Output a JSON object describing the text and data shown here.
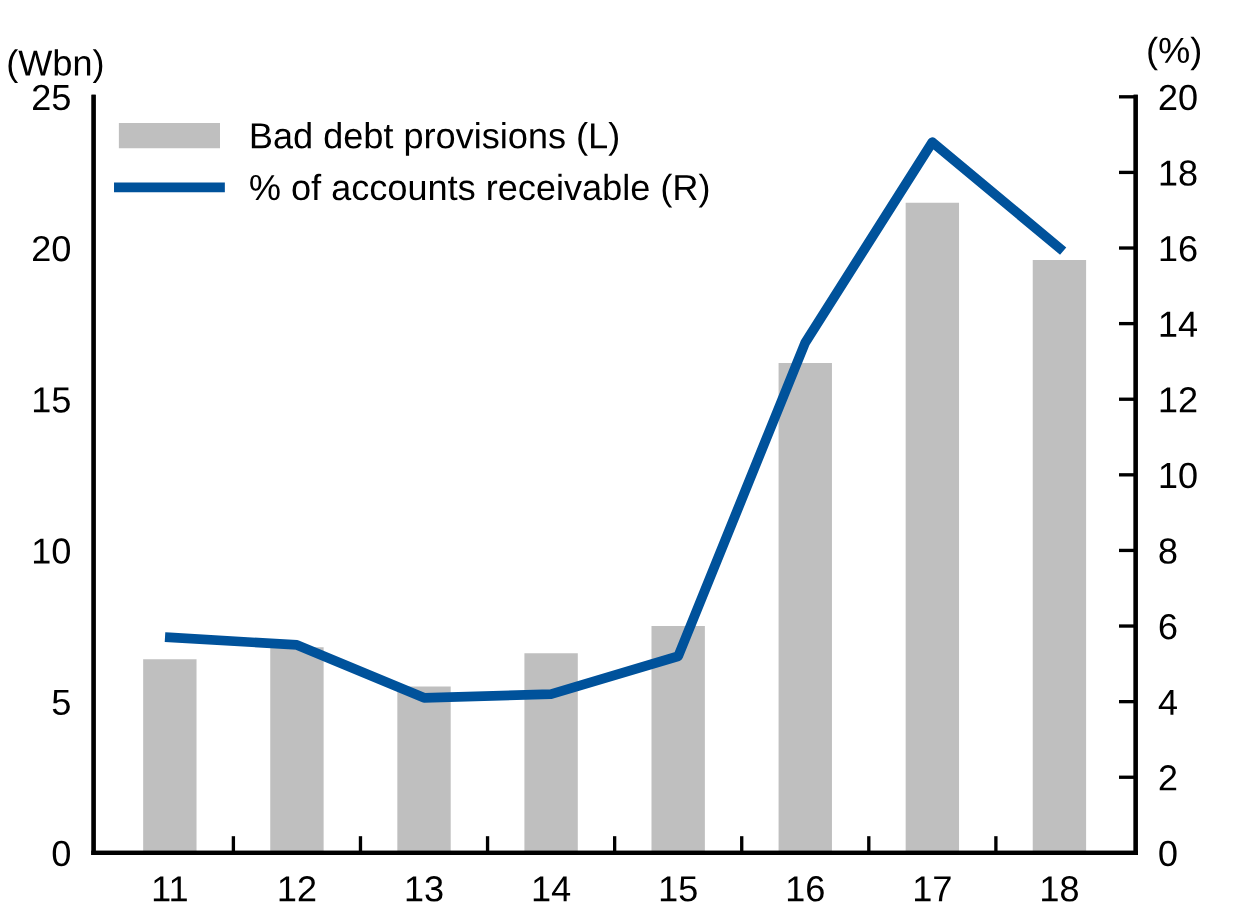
{
  "chart_data": {
    "type": "bar",
    "ylabel": "(Wbn)",
    "y2label": "(%)",
    "categories": [
      "11",
      "12",
      "13",
      "14",
      "15",
      "16",
      "17",
      "18"
    ],
    "series": [
      {
        "name": "Bad debt provisions (L)",
        "color": "#bfbfbf",
        "values": [
          6.4,
          6.8,
          5.5,
          6.6,
          7.5,
          16.2,
          21.5,
          19.6
        ]
      },
      {
        "name": "% of accounts receivable (R)",
        "type": "line",
        "axis": "y2",
        "color": "#00529b",
        "values": [
          5.7,
          5.5,
          4.1,
          4.2,
          5.2,
          13.5,
          18.8,
          16.0
        ]
      }
    ],
    "ylim": [
      0,
      25
    ],
    "yticks": [
      0,
      5,
      10,
      15,
      20,
      25
    ],
    "y2lim": [
      0,
      20
    ],
    "y2ticks": [
      0,
      2,
      4,
      6,
      8,
      10,
      12,
      14,
      16,
      18,
      20
    ],
    "legend": "top left",
    "grid": false,
    "marker": "none",
    "line_style": "solid"
  }
}
